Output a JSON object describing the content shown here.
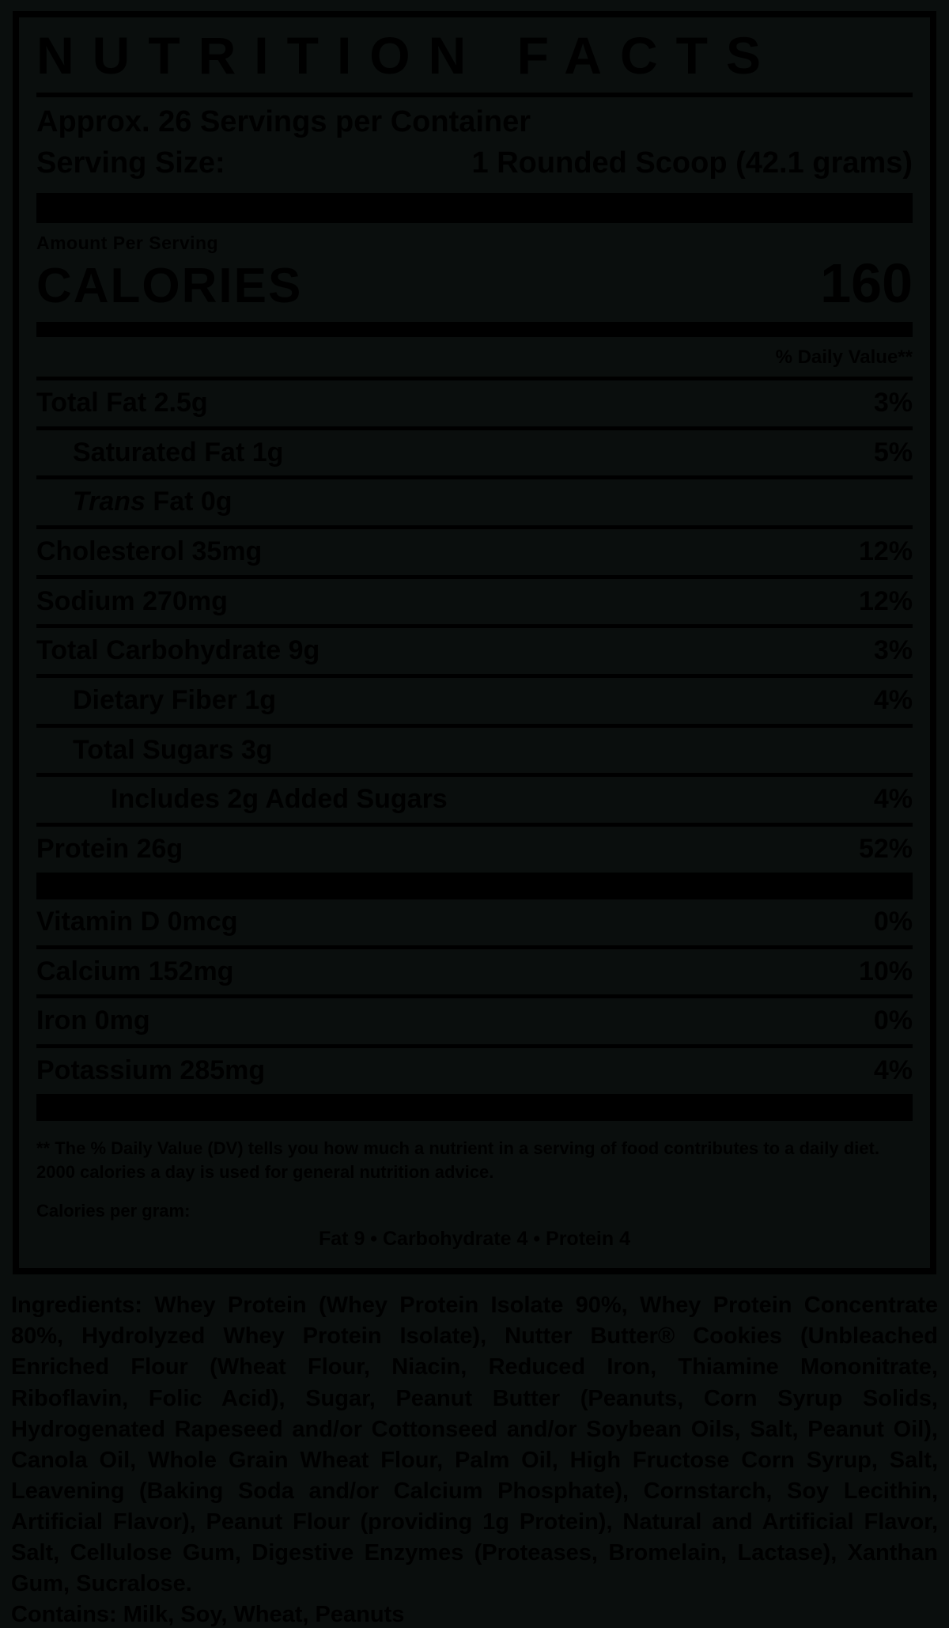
{
  "page": {
    "background": "#0a0e0d",
    "ink": "#000000"
  },
  "label": {
    "title": "NUTRITION FACTS",
    "servings_per_container": "Approx. 26 Servings per Container",
    "serving_size_label": "Serving Size:",
    "serving_size_value": "1 Rounded Scoop (42.1 grams)",
    "amount_per_serving": "Amount Per Serving",
    "calories_label": "CALORIES",
    "calories_value": "160",
    "daily_value_header": "% Daily Value**",
    "rows": [
      {
        "name": "Total Fat",
        "amount": "2.5g",
        "dv": "3%"
      },
      {
        "name": "Saturated Fat",
        "amount": "1g",
        "dv": "5%"
      },
      {
        "name_italic": "Trans",
        "name": " Fat",
        "amount": "0g",
        "dv": ""
      },
      {
        "name": "Cholesterol",
        "amount": "35mg",
        "dv": "12%"
      },
      {
        "name": "Sodium",
        "amount": "270mg",
        "dv": "12%"
      },
      {
        "name": "Total Carbohydrate",
        "amount": "9g",
        "dv": "3%"
      },
      {
        "name": "Dietary Fiber",
        "amount": "1g",
        "dv": "4%"
      },
      {
        "name": "Total Sugars",
        "amount": "3g",
        "dv": ""
      },
      {
        "name": "Includes 2g Added Sugars",
        "amount": "",
        "dv": "4%"
      },
      {
        "name": "Protein",
        "amount": "26g",
        "dv": "52%"
      }
    ],
    "micros": [
      {
        "name": "Vitamin D",
        "amount": "0mcg",
        "dv": "0%"
      },
      {
        "name": "Calcium",
        "amount": "152mg",
        "dv": "10%"
      },
      {
        "name": "Iron",
        "amount": "0mg",
        "dv": "0%"
      },
      {
        "name": "Potassium",
        "amount": "285mg",
        "dv": "4%"
      }
    ],
    "footnote": "** The % Daily Value (DV) tells you how much a nutrient in a serving of food contributes to a daily diet. 2000 calories a day is used for general nutrition advice.",
    "calories_per_gram_label": "Calories per gram:",
    "calories_per_gram_value": "Fat 9 • Carbohydrate 4 • Protein 4"
  },
  "ingredients": {
    "text": "Ingredients: Whey Protein (Whey Protein Isolate 90%, Whey Protein Concentrate 80%, Hydrolyzed Whey Protein Isolate), Nutter Butter® Cookies (Unbleached Enriched Flour (Wheat Flour, Niacin, Reduced Iron, Thiamine Mononitrate, Riboflavin, Folic Acid), Sugar, Peanut Butter (Peanuts, Corn Syrup Solids, Hydrogenated Rapeseed and/or Cottonseed and/or Soybean Oils, Salt, Peanut Oil), Canola Oil, Whole Grain Wheat Flour, Palm Oil, High Fructose Corn Syrup, Salt, Leavening (Baking Soda and/or Calcium Phosphate), Cornstarch, Soy Lecithin, Artificial Flavor), Peanut Flour (providing 1g Protein), Natural and Artificial Flavor, Salt, Cellulose Gum, Digestive Enzymes (Proteases, Bromelain, Lactase), Xanthan Gum, Sucralose.",
    "contains": "Contains: Milk, Soy, Wheat, Peanuts"
  }
}
